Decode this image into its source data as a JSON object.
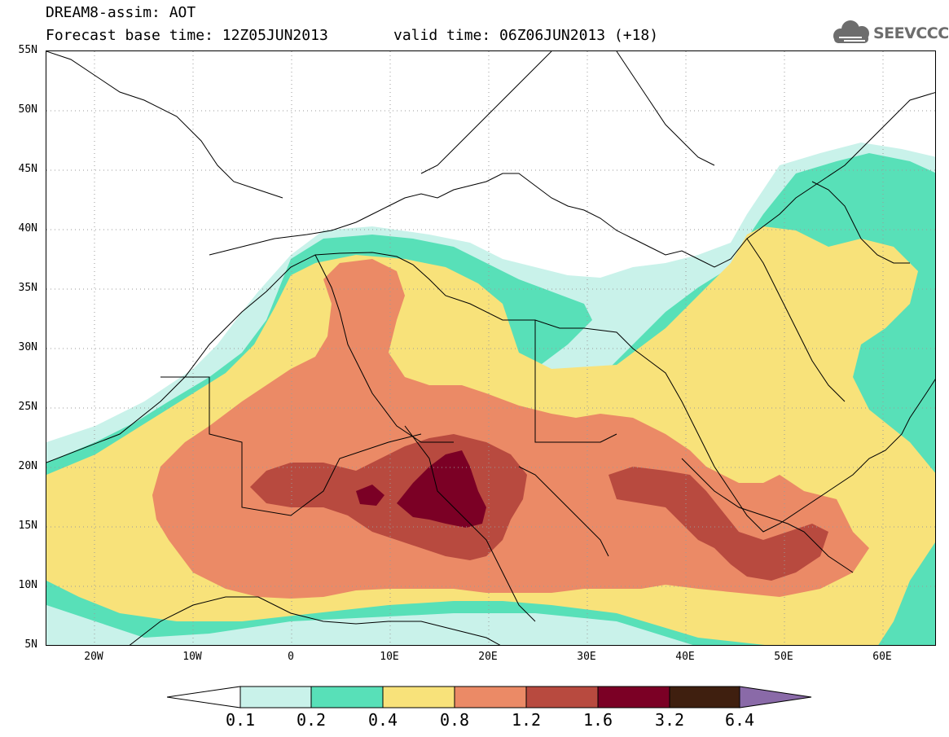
{
  "header": {
    "title": "DREAM8-assim: AOT",
    "base_time": "Forecast base time: 12Z05JUN2013",
    "valid_time": "valid time: 06Z06JUN2013 (+18)",
    "logo_text": "SEEVCCC",
    "logo_icon": "cloud-icon"
  },
  "map": {
    "lat_labels": [
      "55N",
      "50N",
      "45N",
      "40N",
      "35N",
      "30N",
      "25N",
      "20N",
      "15N",
      "10N",
      "5N"
    ],
    "lon_labels": [
      "20W",
      "10W",
      "0",
      "10E",
      "20E",
      "30E",
      "40E",
      "50E",
      "60E"
    ],
    "land_color": "#ffffff",
    "border_color": "#000000",
    "grid_style": "dotted"
  },
  "legend": {
    "labels": [
      "0.1",
      "0.2",
      "0.4",
      "0.8",
      "1.2",
      "1.6",
      "3.2",
      "6.4"
    ],
    "colors": [
      "#ffffff",
      "#c9f2ea",
      "#58e0b8",
      "#f8e27a",
      "#eb8a66",
      "#b84a3f",
      "#7b0025",
      "#3f1f0f",
      "#8a6aa8"
    ]
  }
}
